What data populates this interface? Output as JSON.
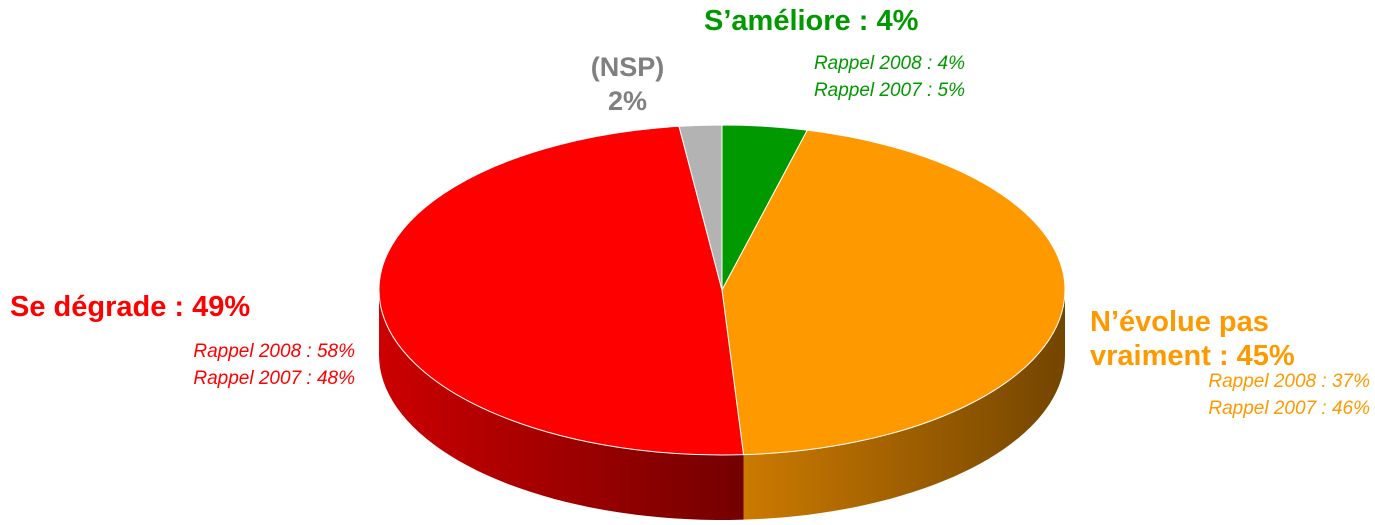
{
  "chart_data": {
    "type": "pie",
    "values": [
      4,
      45,
      49,
      2
    ],
    "value_labels": [
      "S’améliore : 4%",
      "N’évolue pas vraiment : 45%",
      "Se dégrade : 49%",
      "(NSP) 2%"
    ],
    "colors": [
      "#009900",
      "#ff9900",
      "#ff0000",
      "#b3b3b3"
    ],
    "label_colors": [
      "#009900",
      "#ff9900",
      "#ff0000",
      "#808080"
    ],
    "annotations": [
      [
        "Rappel 2008 : 4%",
        "Rappel 2007 : 5%"
      ],
      [
        "Rappel 2008 : 37%",
        "Rappel 2007 : 46%"
      ],
      [
        "Rappel 2008 : 58%",
        "Rappel 2007 : 48%"
      ],
      []
    ]
  }
}
